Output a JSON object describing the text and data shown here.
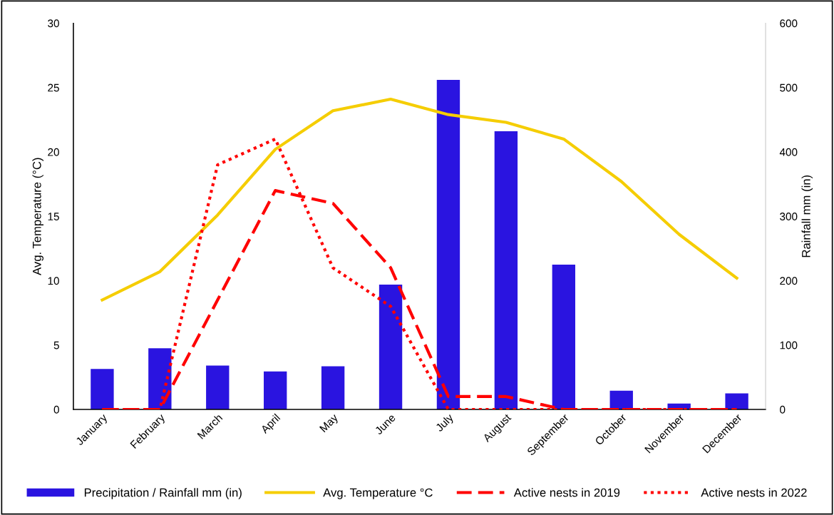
{
  "chart_data": {
    "type": "bar",
    "categories": [
      "January",
      "February",
      "March",
      "April",
      "May",
      "June",
      "July",
      "August",
      "September",
      "October",
      "November",
      "December"
    ],
    "ylabel": "Avg. Temperature (°C)",
    "y2label": "Rainfall mm (in)",
    "ylim": [
      0,
      30
    ],
    "yticks": [
      0,
      5,
      10,
      15,
      20,
      25,
      30
    ],
    "y2lim": [
      0,
      600
    ],
    "y2ticks": [
      0,
      100,
      200,
      300,
      400,
      500,
      600
    ],
    "grid": false,
    "legend": "bottom",
    "series": [
      {
        "name": "Precipitation / Rainfall mm (in)",
        "axis": "y2",
        "color": "#2a14e0",
        "values": [
          63,
          95,
          68,
          59,
          67,
          194,
          512,
          432,
          225,
          29,
          9,
          25
        ]
      },
      {
        "name": "Avg. Temperature °C",
        "type": "line",
        "line_style": "solid",
        "color": "#f5cd00",
        "values": [
          8.5,
          10.7,
          15.1,
          20.2,
          23.2,
          24.1,
          22.9,
          22.3,
          21.0,
          17.7,
          13.6,
          10.2
        ]
      },
      {
        "name": "Active nests in 2019",
        "type": "line",
        "line_style": "dashed",
        "color": "#ff0000",
        "values": [
          0,
          0,
          8.5,
          17,
          16,
          11,
          1,
          1,
          0,
          0,
          0,
          0
        ]
      },
      {
        "name": "Active nests in 2022",
        "type": "line",
        "line_style": "dotted",
        "color": "#ff0000",
        "values": [
          0,
          0,
          19,
          21,
          11,
          8,
          0,
          0,
          0,
          0,
          0,
          0
        ]
      }
    ]
  }
}
